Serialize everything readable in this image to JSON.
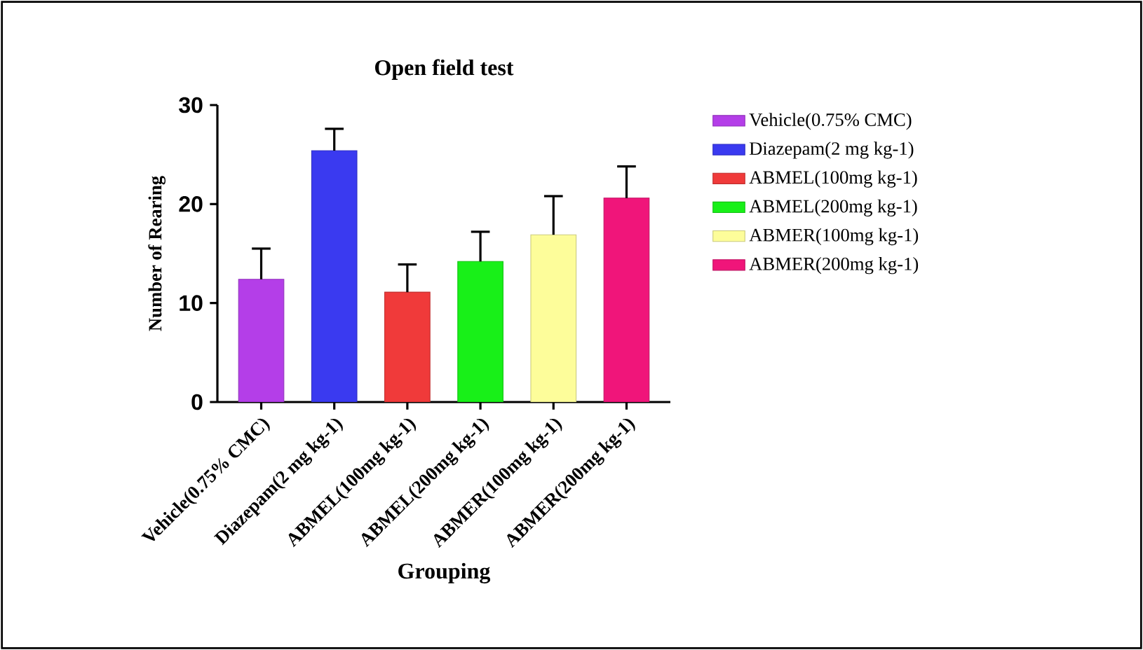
{
  "chart_data": {
    "type": "bar",
    "title": "Open field test",
    "xlabel": "Grouping",
    "ylabel": "Number of Rearing",
    "categories": [
      "Vehicle(0.75% CMC)",
      "Diazepam(2 mg kg-1)",
      "ABMEL(100mg kg-1)",
      "ABMEL(200mg kg-1)",
      "ABMER(100mg kg-1)",
      "ABMER(200mg kg-1)"
    ],
    "series": [
      {
        "name": "Vehicle(0.75% CMC)",
        "color": "#b43ee8",
        "values": [
          12.4,
          null,
          null,
          null,
          null,
          null
        ],
        "errors": [
          3.1,
          null,
          null,
          null,
          null,
          null
        ]
      },
      {
        "name": "Diazepam(2 mg kg-1)",
        "color": "#3a3af0",
        "values": [
          null,
          25.4,
          null,
          null,
          null,
          null
        ],
        "errors": [
          null,
          2.2,
          null,
          null,
          null,
          null
        ]
      },
      {
        "name": "ABMEL(100mg kg-1)",
        "color": "#f03a3a",
        "values": [
          null,
          null,
          11.1,
          null,
          null,
          null
        ],
        "errors": [
          null,
          null,
          2.8,
          null,
          null,
          null
        ]
      },
      {
        "name": "ABMEL(200mg kg-1)",
        "color": "#18f018",
        "values": [
          null,
          null,
          null,
          14.2,
          null,
          null
        ],
        "errors": [
          null,
          null,
          null,
          3.0,
          null,
          null
        ]
      },
      {
        "name": "ABMER(100mg kg-1)",
        "color": "#fdfd9a",
        "values": [
          null,
          null,
          null,
          null,
          16.9,
          null
        ],
        "errors": [
          null,
          null,
          null,
          null,
          3.9,
          null
        ]
      },
      {
        "name": "ABMER(200mg kg-1)",
        "color": "#f0157a",
        "values": [
          null,
          null,
          null,
          null,
          null,
          20.6
        ],
        "errors": [
          null,
          null,
          null,
          null,
          null,
          3.2
        ]
      }
    ],
    "ylim": [
      0,
      30
    ],
    "yticks": [
      0,
      10,
      20,
      30
    ],
    "legend": "right"
  }
}
